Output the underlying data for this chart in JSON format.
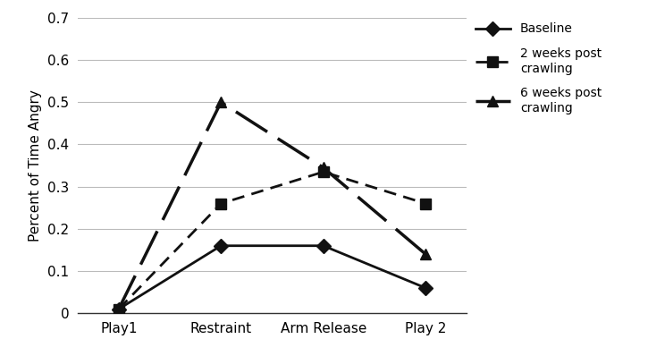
{
  "categories": [
    "Play1",
    "Restraint",
    "Arm Release",
    "Play 2"
  ],
  "series": [
    {
      "label": "Baseline",
      "values": [
        0.01,
        0.16,
        0.16,
        0.06
      ],
      "linestyle": "solid",
      "marker": "D",
      "markersize": 8,
      "color": "#111111",
      "linewidth": 2.0
    },
    {
      "label": "2 weeks post\ncrawling",
      "values": [
        0.01,
        0.26,
        0.335,
        0.26
      ],
      "linestyle": "dashed",
      "dashes": [
        5,
        3
      ],
      "marker": "s",
      "markersize": 8,
      "color": "#111111",
      "linewidth": 2.0
    },
    {
      "label": "6 weeks post\ncrawling",
      "values": [
        0.01,
        0.5,
        0.345,
        0.14
      ],
      "linestyle": "dashed",
      "dashes": [
        12,
        4
      ],
      "marker": "^",
      "markersize": 9,
      "color": "#111111",
      "linewidth": 2.5
    }
  ],
  "ylabel": "Percent of Time Angry",
  "ylim": [
    0,
    0.7
  ],
  "yticks": [
    0,
    0.1,
    0.2,
    0.3,
    0.4,
    0.5,
    0.6,
    0.7
  ],
  "ytick_labels": [
    "0",
    "0.1",
    "0.2",
    "0.3",
    "0.4",
    "0.5",
    "0.6",
    "0.7"
  ],
  "background_color": "#ffffff",
  "grid_color": "#bbbbbb",
  "figsize": [
    7.25,
    3.98
  ],
  "dpi": 100,
  "legend_fontsize": 10,
  "axis_fontsize": 11,
  "ylabel_fontsize": 11
}
